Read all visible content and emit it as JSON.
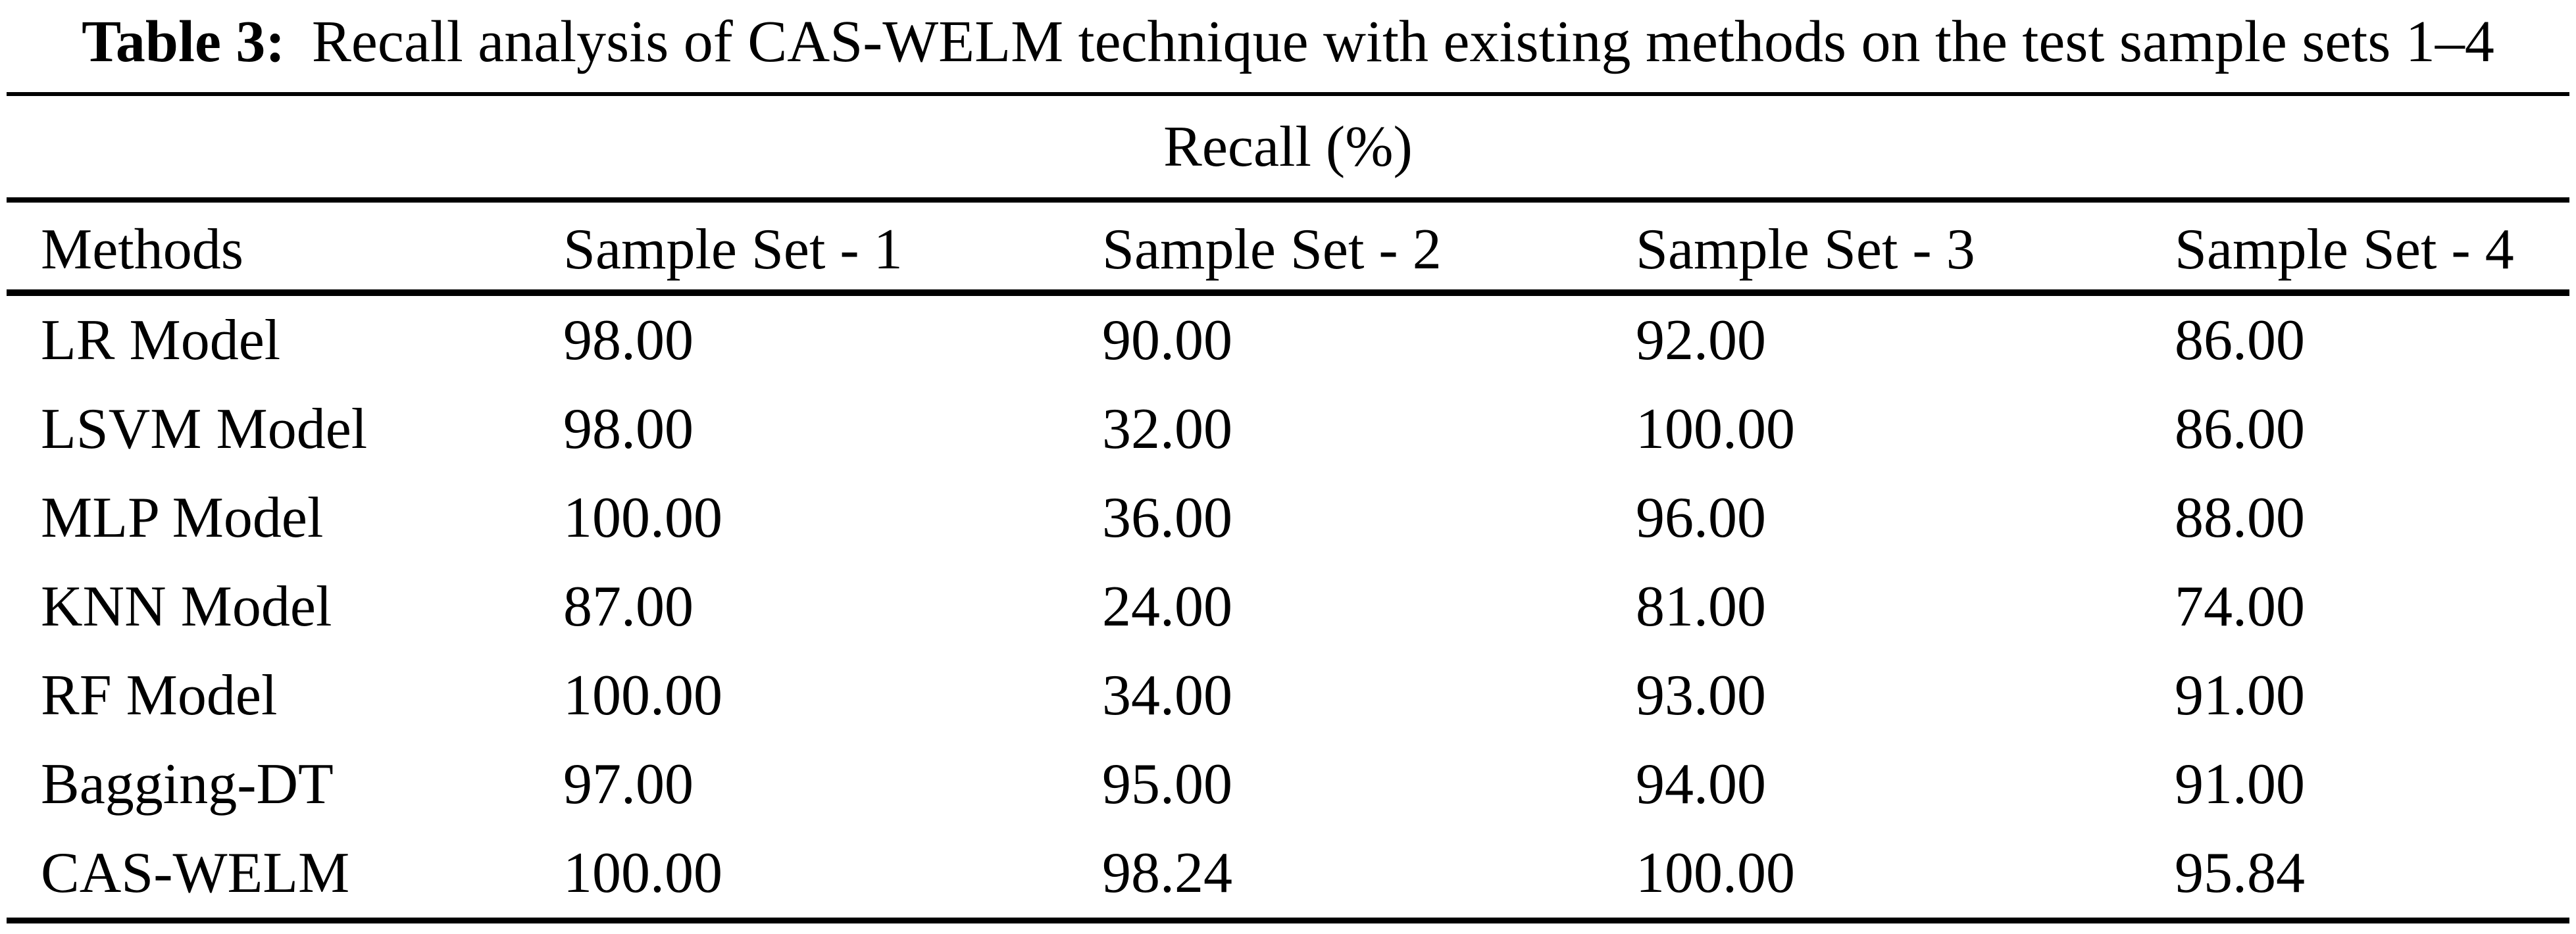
{
  "colors": {
    "background": "#ffffff",
    "text": "#000000",
    "rule": "#000000"
  },
  "caption": {
    "label": "Table 3:",
    "text": "Recall analysis of CAS-WELM technique with existing methods on the test sample sets 1–4"
  },
  "table": {
    "span_header": "Recall (%)",
    "columns": [
      "Methods",
      "Sample Set - 1",
      "Sample Set - 2",
      "Sample Set - 3",
      "Sample Set - 4"
    ],
    "rows": [
      {
        "cells": [
          "LR Model",
          "98.00",
          "90.00",
          "92.00",
          "86.00"
        ]
      },
      {
        "cells": [
          "LSVM Model",
          "98.00",
          "32.00",
          "100.00",
          "86.00"
        ]
      },
      {
        "cells": [
          "MLP Model",
          "100.00",
          "36.00",
          "96.00",
          "88.00"
        ]
      },
      {
        "cells": [
          "KNN Model",
          "87.00",
          "24.00",
          "81.00",
          "74.00"
        ]
      },
      {
        "cells": [
          "RF Model",
          "100.00",
          "34.00",
          "93.00",
          "91.00"
        ]
      },
      {
        "cells": [
          "Bagging-DT",
          "97.00",
          "95.00",
          "94.00",
          "91.00"
        ]
      },
      {
        "cells": [
          "CAS-WELM",
          "100.00",
          "98.24",
          "100.00",
          "95.84"
        ]
      }
    ]
  }
}
